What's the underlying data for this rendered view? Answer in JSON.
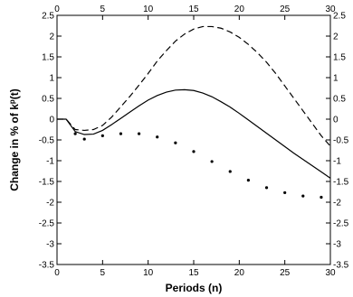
{
  "chart_data": {
    "type": "line",
    "title": "",
    "xlabel": "Periods (n)",
    "ylabel_main": "Change in % of k",
    "ylabel_sup": "p",
    "ylabel_tail": "(t)",
    "xlim": [
      0,
      30
    ],
    "ylim": [
      -3.5,
      2.5
    ],
    "x_ticks": [
      0,
      5,
      10,
      15,
      20,
      25,
      30
    ],
    "y_ticks": [
      -3.5,
      -3,
      -2.5,
      -2,
      -1.5,
      -1,
      -0.5,
      0,
      0.5,
      1,
      1.5,
      2,
      2.5
    ],
    "grid": false,
    "legend": "none",
    "series": [
      {
        "style": "dashed",
        "color": "#000000",
        "x": [
          0,
          1,
          2,
          3,
          4,
          5,
          6,
          7,
          8,
          9,
          10,
          11,
          12,
          13,
          14,
          15,
          16,
          17,
          18,
          19,
          20,
          21,
          22,
          23,
          24,
          25,
          26,
          27,
          28,
          29,
          30
        ],
        "y": [
          0,
          0,
          -0.25,
          -0.27,
          -0.25,
          -0.15,
          0.05,
          0.3,
          0.55,
          0.82,
          1.1,
          1.4,
          1.65,
          1.88,
          2.05,
          2.17,
          2.23,
          2.23,
          2.19,
          2.1,
          1.97,
          1.8,
          1.6,
          1.37,
          1.1,
          0.8,
          0.5,
          0.2,
          -0.1,
          -0.4,
          -0.65
        ]
      },
      {
        "style": "solid",
        "color": "#000000",
        "x": [
          0,
          1,
          2,
          3,
          4,
          5,
          6,
          7,
          8,
          9,
          10,
          11,
          12,
          13,
          14,
          15,
          16,
          17,
          18,
          19,
          20,
          21,
          22,
          23,
          24,
          25,
          26,
          27,
          28,
          29,
          30
        ],
        "y": [
          0,
          0,
          -0.3,
          -0.37,
          -0.36,
          -0.27,
          -0.13,
          0.02,
          0.17,
          0.32,
          0.46,
          0.57,
          0.65,
          0.7,
          0.71,
          0.69,
          0.63,
          0.54,
          0.42,
          0.29,
          0.14,
          -0.02,
          -0.18,
          -0.34,
          -0.5,
          -0.66,
          -0.82,
          -0.97,
          -1.12,
          -1.27,
          -1.42
        ]
      },
      {
        "style": "dotted",
        "color": "#000000",
        "x": [
          2,
          3,
          5,
          7,
          9,
          11,
          13,
          15,
          17,
          19,
          21,
          23,
          25,
          27,
          29
        ],
        "y": [
          -0.35,
          -0.48,
          -0.4,
          -0.35,
          -0.35,
          -0.43,
          -0.57,
          -0.78,
          -1.02,
          -1.26,
          -1.47,
          -1.65,
          -1.77,
          -1.85,
          -1.88
        ]
      }
    ]
  }
}
